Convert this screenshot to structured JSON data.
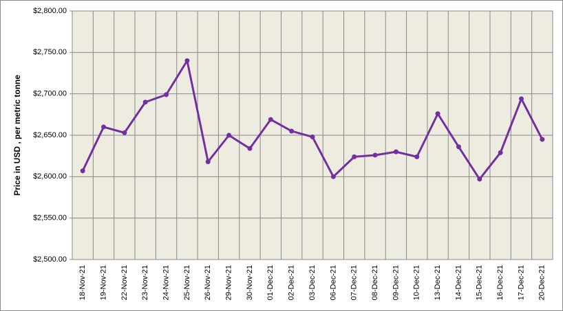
{
  "chart_data": {
    "type": "line",
    "y_label": "Price in USD , per metric tonne",
    "categories": [
      "18-Nov-21",
      "19-Nov-21",
      "22-Nov-21",
      "23-Nov-21",
      "24-Nov-21",
      "25-Nov-21",
      "26-Nov-21",
      "29-Nov-21",
      "30-Nov-21",
      "01-Dec-21",
      "02-Dec-21",
      "03-Dec-21",
      "06-Dec-21",
      "07-Dec-21",
      "08-Dec-21",
      "09-Dec-21",
      "10-Dec-21",
      "13-Dec-21",
      "14-Dec-21",
      "15-Dec-21",
      "16-Dec-21",
      "17-Dec-21",
      "20-Dec-21"
    ],
    "values": [
      2607,
      2660,
      2653,
      2690,
      2699,
      2740,
      2618,
      2650,
      2634,
      2669,
      2655,
      2648,
      2600,
      2624,
      2626,
      2630,
      2624,
      2676,
      2636,
      2597,
      2629,
      2694,
      2645
    ],
    "color": "#7030a0",
    "ylim": [
      2500,
      2800
    ],
    "yticks": [
      {
        "value": 2500,
        "label": "$2,500.00"
      },
      {
        "value": 2550,
        "label": "$2,550.00"
      },
      {
        "value": 2600,
        "label": "$2,600.00"
      },
      {
        "value": 2650,
        "label": "$2,650.00"
      },
      {
        "value": 2700,
        "label": "$2,700.00"
      },
      {
        "value": 2750,
        "label": "$2,750.00"
      },
      {
        "value": 2800,
        "label": "$2,800.00"
      }
    ],
    "grid": true
  }
}
